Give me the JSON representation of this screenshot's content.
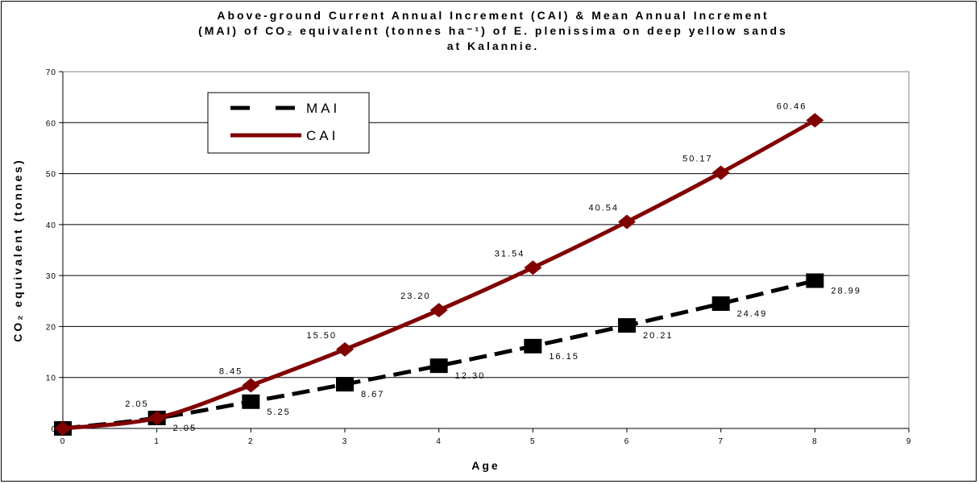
{
  "chart_data": {
    "type": "line",
    "title_lines": [
      "Above-ground Current Annual Increment (CAI) & Mean Annual Increment",
      "(MAI) of CO₂ equivalent (tonnes ha⁻¹) of E. plenissima on deep yellow sands",
      "at Kalannie."
    ],
    "xlabel": "Age",
    "ylabel": "CO₂ equivalent (tonnes)",
    "xlim": [
      0,
      9
    ],
    "ylim": [
      0,
      70
    ],
    "xticks": [
      "0",
      "1",
      "2",
      "3",
      "4",
      "5",
      "6",
      "7",
      "8",
      "9"
    ],
    "yticks": [
      "0",
      "10",
      "20",
      "30",
      "40",
      "50",
      "60",
      "70"
    ],
    "grid": "horizontal",
    "legend_position": "top-left",
    "series": [
      {
        "name": "MAI",
        "color": "#000000",
        "style": "dashed",
        "marker": "square",
        "x": [
          0,
          1,
          2,
          3,
          4,
          5,
          6,
          7,
          8
        ],
        "values": [
          0,
          2.05,
          5.25,
          8.67,
          12.3,
          16.15,
          20.21,
          24.49,
          28.99
        ],
        "labels": [
          "",
          "2.05",
          "5.25",
          "8.67",
          "12.30",
          "16.15",
          "20.21",
          "24.49",
          "28.99"
        ]
      },
      {
        "name": "CAI",
        "color": "#800000",
        "style": "solid",
        "marker": "diamond",
        "x": [
          0,
          1,
          2,
          3,
          4,
          5,
          6,
          7,
          8
        ],
        "values": [
          0,
          2.05,
          8.45,
          15.5,
          23.2,
          31.54,
          40.54,
          50.17,
          60.46
        ],
        "labels": [
          "",
          "2.05",
          "8.45",
          "15.50",
          "23.20",
          "31.54",
          "40.54",
          "50.17",
          "60.46"
        ]
      }
    ]
  }
}
